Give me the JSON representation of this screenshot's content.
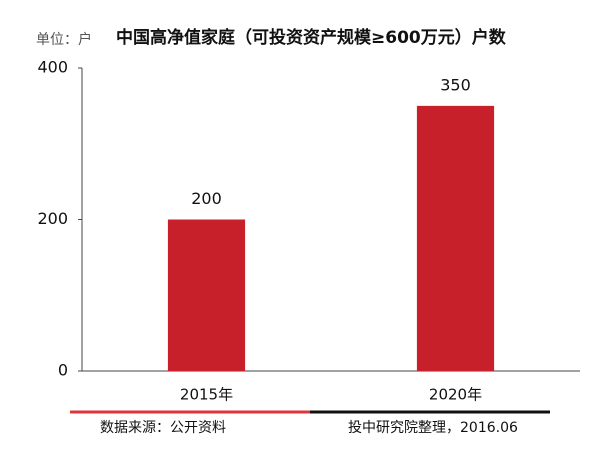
{
  "chart_data": {
    "type": "bar",
    "title": "中国高净值家庭（可投资资产规模≥600万元）户数",
    "unit_label": "单位：户",
    "categories": [
      "2015年",
      "2020年"
    ],
    "values": [
      200,
      350
    ],
    "color": "#c8202a",
    "ylim": [
      0,
      400
    ],
    "yticks": [
      0,
      200,
      400
    ],
    "grid": false,
    "source": "数据来源：公开资料",
    "note": "投中研究院整理，2016.06"
  }
}
